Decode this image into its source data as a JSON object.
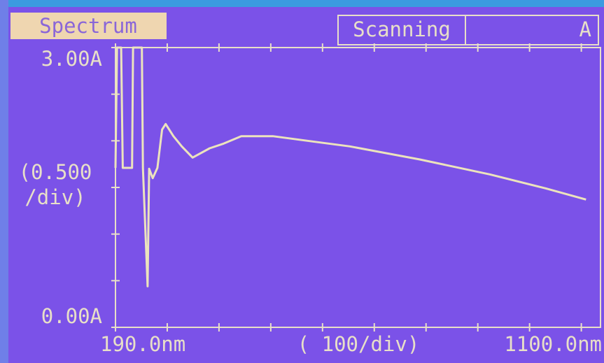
{
  "header": {
    "mode": "Spectrum",
    "status": "Scanning",
    "unit": "A"
  },
  "chart_data": {
    "type": "line",
    "x": [
      190,
      193,
      201,
      204,
      222,
      224,
      241,
      243,
      252,
      255,
      262,
      271,
      280,
      287,
      302,
      318,
      339,
      372,
      399,
      433,
      494,
      575,
      643,
      778,
      913,
      1021,
      1099
    ],
    "values": [
      1.71,
      3.0,
      3.0,
      1.71,
      1.71,
      3.0,
      3.0,
      1.71,
      0.44,
      1.7,
      1.6,
      1.71,
      2.12,
      2.18,
      2.05,
      1.94,
      1.82,
      1.92,
      1.97,
      2.05,
      2.05,
      1.99,
      1.94,
      1.8,
      1.64,
      1.49,
      1.37
    ],
    "color": "#ece3bd",
    "xlim": [
      190,
      1100
    ],
    "ylim": [
      0,
      3
    ],
    "xticks": [
      {
        "value": 190,
        "label": "190.0nm"
      },
      {
        "value": 1100,
        "label": "1100.0nm"
      }
    ],
    "yticks": [
      {
        "value": 3,
        "label": "3.00A"
      },
      {
        "value": 0,
        "label": "0.00A"
      }
    ],
    "xdiv": 100,
    "xdiv_label": "( 100/div)",
    "ydiv": 0.5,
    "ydiv_label": "(0.500 /div)"
  }
}
